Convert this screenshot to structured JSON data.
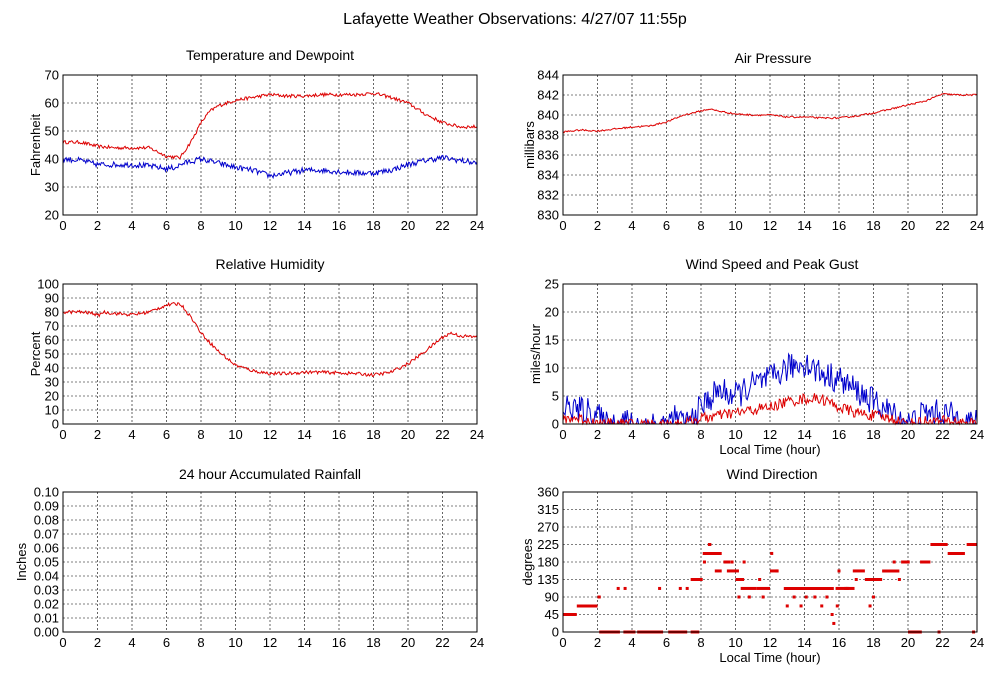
{
  "page_title": "Lafayette Weather Observations: 4/27/07 11:55p",
  "colors": {
    "red": "#dd0000",
    "blue": "#0000cc",
    "grid": "#000000"
  },
  "chart_data": [
    {
      "id": "temperature",
      "type": "line",
      "title": "Temperature and Dewpoint",
      "xlabel": "",
      "ylabel": "Fahrenheit",
      "xlim": [
        0,
        24
      ],
      "ylim": [
        20,
        70
      ],
      "xticks": [
        0,
        2,
        4,
        6,
        8,
        10,
        12,
        14,
        16,
        18,
        20,
        22,
        24
      ],
      "yticks": [
        20,
        30,
        40,
        50,
        60,
        70
      ],
      "grid": true,
      "series": [
        {
          "color": "red",
          "noise": 0.6,
          "points": [
            [
              0,
              46
            ],
            [
              1,
              46
            ],
            [
              2,
              44.5
            ],
            [
              3,
              44
            ],
            [
              4,
              44
            ],
            [
              5,
              44
            ],
            [
              6,
              41
            ],
            [
              6.8,
              40.5
            ],
            [
              7.5,
              47
            ],
            [
              8,
              53
            ],
            [
              8.5,
              57
            ],
            [
              9,
              59
            ],
            [
              10,
              61
            ],
            [
              11,
              62
            ],
            [
              12,
              63
            ],
            [
              13,
              62.5
            ],
            [
              14,
              62.5
            ],
            [
              15,
              63
            ],
            [
              16,
              63
            ],
            [
              17,
              63
            ],
            [
              18,
              63.5
            ],
            [
              19,
              62
            ],
            [
              20,
              60
            ],
            [
              21,
              56
            ],
            [
              22,
              53
            ],
            [
              23,
              51.5
            ],
            [
              24,
              51.5
            ]
          ]
        },
        {
          "color": "blue",
          "noise": 1.0,
          "points": [
            [
              0,
              40
            ],
            [
              1,
              39.5
            ],
            [
              2,
              38
            ],
            [
              3,
              38
            ],
            [
              4,
              38
            ],
            [
              5,
              37.5
            ],
            [
              6,
              36.5
            ],
            [
              6.5,
              37
            ],
            [
              7,
              38.5
            ],
            [
              8,
              40
            ],
            [
              9,
              38.5
            ],
            [
              10,
              37
            ],
            [
              11,
              36
            ],
            [
              12,
              34
            ],
            [
              13,
              35
            ],
            [
              14,
              36
            ],
            [
              15,
              36
            ],
            [
              16,
              35.5
            ],
            [
              17,
              35
            ],
            [
              18,
              35
            ],
            [
              19,
              36
            ],
            [
              20,
              38
            ],
            [
              21,
              39.5
            ],
            [
              22,
              40.5
            ],
            [
              23,
              39.5
            ],
            [
              24,
              38.5
            ]
          ]
        }
      ]
    },
    {
      "id": "pressure",
      "type": "line",
      "title": "Air Pressure",
      "xlabel": "",
      "ylabel": "millibars",
      "xlim": [
        0,
        24
      ],
      "ylim": [
        830,
        844
      ],
      "xticks": [
        0,
        2,
        4,
        6,
        8,
        10,
        12,
        14,
        16,
        18,
        20,
        22,
        24
      ],
      "yticks": [
        830,
        832,
        834,
        836,
        838,
        840,
        842,
        844
      ],
      "grid": true,
      "series": [
        {
          "color": "red",
          "noise": 0.08,
          "points": [
            [
              0,
              838.3
            ],
            [
              1,
              838.5
            ],
            [
              2,
              838.4
            ],
            [
              3,
              838.6
            ],
            [
              4,
              838.8
            ],
            [
              5,
              838.9
            ],
            [
              6,
              839.3
            ],
            [
              7,
              840
            ],
            [
              8,
              840.4
            ],
            [
              8.5,
              840.6
            ],
            [
              9,
              840.4
            ],
            [
              10,
              840.1
            ],
            [
              11,
              840
            ],
            [
              12,
              840
            ],
            [
              13,
              839.8
            ],
            [
              14,
              839.8
            ],
            [
              15,
              839.7
            ],
            [
              16,
              839.7
            ],
            [
              17,
              839.9
            ],
            [
              18,
              840.2
            ],
            [
              19,
              840.6
            ],
            [
              20,
              841
            ],
            [
              21,
              841.4
            ],
            [
              22,
              842.1
            ],
            [
              23,
              842
            ],
            [
              24,
              842
            ]
          ]
        }
      ]
    },
    {
      "id": "humidity",
      "type": "line",
      "title": "Relative Humidity",
      "xlabel": "",
      "ylabel": "Percent",
      "xlim": [
        0,
        24
      ],
      "ylim": [
        0,
        100
      ],
      "xticks": [
        0,
        2,
        4,
        6,
        8,
        10,
        12,
        14,
        16,
        18,
        20,
        22,
        24
      ],
      "yticks": [
        0,
        10,
        20,
        30,
        40,
        50,
        60,
        70,
        80,
        90,
        100
      ],
      "grid": true,
      "series": [
        {
          "color": "red",
          "noise": 1.2,
          "points": [
            [
              0,
              80
            ],
            [
              1,
              80
            ],
            [
              1.8,
              79
            ],
            [
              2,
              77
            ],
            [
              2.3,
              80
            ],
            [
              3,
              79
            ],
            [
              4,
              78
            ],
            [
              5,
              80
            ],
            [
              6,
              85
            ],
            [
              6.8,
              86
            ],
            [
              7.5,
              75
            ],
            [
              8,
              65
            ],
            [
              9,
              52
            ],
            [
              10,
              42
            ],
            [
              11,
              38
            ],
            [
              12,
              36
            ],
            [
              13,
              36
            ],
            [
              14,
              37
            ],
            [
              15,
              37
            ],
            [
              16,
              36.5
            ],
            [
              17,
              36
            ],
            [
              18,
              35
            ],
            [
              19,
              37
            ],
            [
              20,
              43
            ],
            [
              21,
              52
            ],
            [
              22,
              62
            ],
            [
              22.5,
              65
            ],
            [
              23,
              63
            ],
            [
              24,
              62
            ]
          ]
        }
      ]
    },
    {
      "id": "wind_speed",
      "type": "line",
      "title": "Wind Speed and Peak Gust",
      "xlabel": "Local Time (hour)",
      "ylabel": "miles/hour",
      "xlim": [
        0,
        24
      ],
      "ylim": [
        0,
        25
      ],
      "xticks": [
        0,
        2,
        4,
        6,
        8,
        10,
        12,
        14,
        16,
        18,
        20,
        22,
        24
      ],
      "yticks": [
        0,
        5,
        10,
        15,
        20,
        25
      ],
      "grid": true,
      "series": [
        {
          "color": "blue",
          "noise": 2.5,
          "points": [
            [
              0,
              3
            ],
            [
              2,
              2
            ],
            [
              2.3,
              0
            ],
            [
              3.3,
              0
            ],
            [
              3.5,
              1
            ],
            [
              3.8,
              0
            ],
            [
              6,
              0
            ],
            [
              6.5,
              1
            ],
            [
              7,
              0
            ],
            [
              7.5,
              1
            ],
            [
              8,
              3
            ],
            [
              9,
              6
            ],
            [
              10,
              5
            ],
            [
              11,
              7
            ],
            [
              12,
              8
            ],
            [
              13,
              10
            ],
            [
              14,
              11
            ],
            [
              15,
              9
            ],
            [
              16,
              8
            ],
            [
              17,
              6
            ],
            [
              18,
              4
            ],
            [
              19,
              2
            ],
            [
              20,
              0
            ],
            [
              21,
              2
            ],
            [
              22,
              2
            ],
            [
              23,
              1
            ],
            [
              24,
              0
            ]
          ]
        },
        {
          "color": "red",
          "noise": 1.0,
          "points": [
            [
              0,
              1
            ],
            [
              1,
              1
            ],
            [
              2,
              0
            ],
            [
              7,
              0
            ],
            [
              8,
              1
            ],
            [
              9,
              1.5
            ],
            [
              10,
              2
            ],
            [
              11,
              2.5
            ],
            [
              12,
              3
            ],
            [
              13,
              4
            ],
            [
              14,
              4.5
            ],
            [
              15,
              4.5
            ],
            [
              16,
              3
            ],
            [
              17,
              2
            ],
            [
              18,
              1.5
            ],
            [
              19,
              1
            ],
            [
              20,
              0
            ],
            [
              21,
              0.5
            ],
            [
              22,
              0.5
            ],
            [
              23,
              0.5
            ],
            [
              24,
              0
            ]
          ]
        }
      ]
    },
    {
      "id": "rainfall",
      "type": "line",
      "title": "24 hour Accumulated Rainfall",
      "xlabel": "",
      "ylabel": "Inches",
      "xlim": [
        0,
        24
      ],
      "ylim": [
        0,
        0.1
      ],
      "xticks": [
        0,
        2,
        4,
        6,
        8,
        10,
        12,
        14,
        16,
        18,
        20,
        22,
        24
      ],
      "yticks": [
        0,
        0.01,
        0.02,
        0.03,
        0.04,
        0.05,
        0.06,
        0.07,
        0.08,
        0.09,
        0.1
      ],
      "ytick_labels": [
        "0.00",
        "0.01",
        "0.02",
        "0.03",
        "0.04",
        "0.05",
        "0.06",
        "0.07",
        "0.08",
        "0.09",
        "0.10"
      ],
      "grid": true,
      "series": [
        {
          "color": "red",
          "noise": 0,
          "points": [
            [
              0,
              0
            ],
            [
              24,
              0
            ]
          ]
        }
      ]
    },
    {
      "id": "wind_direction",
      "type": "scatter",
      "title": "Wind Direction",
      "xlabel": "Local Time (hour)",
      "ylabel": "degrees",
      "xlim": [
        0,
        24
      ],
      "ylim": [
        0,
        360
      ],
      "xticks": [
        0,
        2,
        4,
        6,
        8,
        10,
        12,
        14,
        16,
        18,
        20,
        22,
        24
      ],
      "yticks": [
        0,
        45,
        90,
        135,
        180,
        225,
        270,
        315,
        360
      ],
      "grid": true,
      "series": [
        {
          "color": "red",
          "segments": [
            [
              0,
              0.8,
              45
            ],
            [
              0.8,
              2,
              67
            ],
            [
              2,
              2.1,
              90
            ],
            [
              2.1,
              3.3,
              0
            ],
            [
              3.5,
              4.2,
              0
            ],
            [
              4.3,
              5.8,
              0
            ],
            [
              6.1,
              7.2,
              0
            ],
            [
              7.4,
              7.9,
              0
            ],
            [
              7.4,
              8.1,
              135
            ],
            [
              8.1,
              9.2,
              202
            ],
            [
              8.4,
              8.6,
              225
            ],
            [
              8.8,
              9.2,
              157
            ],
            [
              9.3,
              9.7,
              180
            ],
            [
              9.5,
              10.2,
              157
            ],
            [
              10,
              10.5,
              135
            ],
            [
              10.3,
              11.2,
              112
            ],
            [
              11.2,
              12,
              112
            ],
            [
              12,
              12.5,
              157
            ],
            [
              12.8,
              15.7,
              112
            ],
            [
              15.8,
              16.5,
              112
            ],
            [
              16.3,
              16.9,
              112
            ],
            [
              16.8,
              17.5,
              157
            ],
            [
              17.5,
              18.5,
              135
            ],
            [
              18.5,
              19.5,
              157
            ],
            [
              19.6,
              20.1,
              180
            ],
            [
              20,
              20.8,
              0
            ],
            [
              20.7,
              21.3,
              180
            ],
            [
              21.3,
              22.3,
              225
            ],
            [
              22.3,
              23.3,
              202
            ],
            [
              23.4,
              24,
              225
            ]
          ],
          "dots": [
            [
              2.1,
              90
            ],
            [
              3.2,
              112
            ],
            [
              3.6,
              112
            ],
            [
              5.6,
              112
            ],
            [
              6.8,
              112
            ],
            [
              7.2,
              112
            ],
            [
              8.2,
              180
            ],
            [
              9.8,
              180
            ],
            [
              10.2,
              90
            ],
            [
              10.5,
              180
            ],
            [
              10.8,
              90
            ],
            [
              11.4,
              135
            ],
            [
              11.6,
              90
            ],
            [
              12.1,
              202
            ],
            [
              12.4,
              157
            ],
            [
              13,
              67
            ],
            [
              13.4,
              90
            ],
            [
              13.8,
              67
            ],
            [
              14.1,
              90
            ],
            [
              14.6,
              90
            ],
            [
              15,
              67
            ],
            [
              15.3,
              90
            ],
            [
              15.6,
              45
            ],
            [
              15.7,
              22
            ],
            [
              15.9,
              67
            ],
            [
              16,
              157
            ],
            [
              16.5,
              112
            ],
            [
              17,
              135
            ],
            [
              17.8,
              67
            ],
            [
              18,
              90
            ],
            [
              18.3,
              135
            ],
            [
              19.2,
              180
            ],
            [
              19.5,
              135
            ],
            [
              21.8,
              0
            ],
            [
              23.8,
              0
            ]
          ]
        }
      ]
    }
  ]
}
